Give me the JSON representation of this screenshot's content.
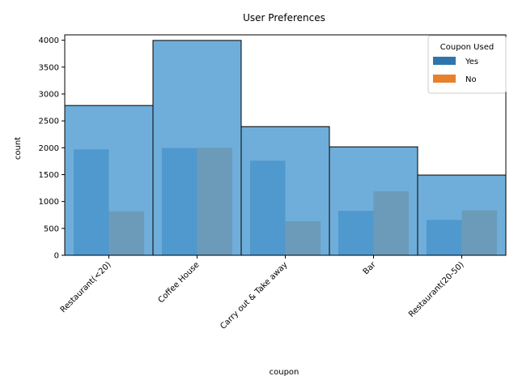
{
  "chart_data": {
    "type": "bar",
    "title": "User Preferences",
    "xlabel": "coupon",
    "ylabel": "count",
    "ylim": [
      0,
      4100
    ],
    "yticks": [
      0,
      500,
      1000,
      1500,
      2000,
      2500,
      3000,
      3500,
      4000
    ],
    "categories": [
      "Restaurant(<20)",
      "Coffee House",
      "Carry out & Take away",
      "Bar",
      "Restaurant(20-50)"
    ],
    "totals": [
      2786,
      3996,
      2393,
      2017,
      1492
    ],
    "legend": {
      "title": "Coupon Used",
      "position": "top-right"
    },
    "series": [
      {
        "name": "Yes",
        "values": [
          1970,
          1995,
          1760,
          827,
          658
        ],
        "color": "#2f75ad"
      },
      {
        "name": "No",
        "values": [
          816,
          2001,
          633,
          1190,
          834
        ],
        "color": "#e8812c"
      }
    ],
    "total_bar_color": "#56a0d3",
    "grid": false
  }
}
